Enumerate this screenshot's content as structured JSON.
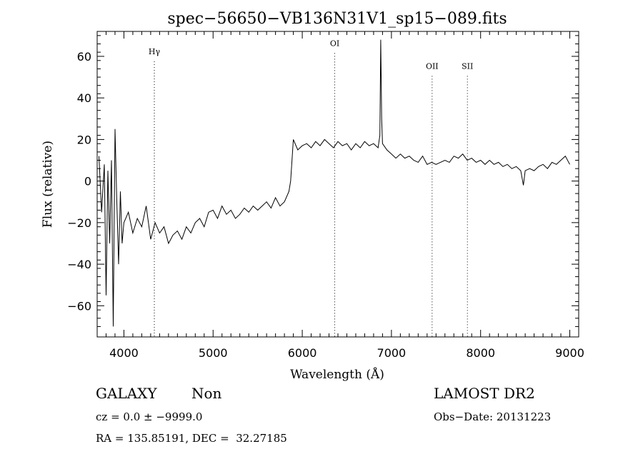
{
  "chart_data": {
    "type": "line",
    "title": "spec−56650−VB136N31V1_sp15−089.fits",
    "xlabel": "Wavelength (Å)",
    "ylabel": "Flux (relative)",
    "xlim": [
      3700,
      9100
    ],
    "ylim": [
      -75,
      72
    ],
    "xticks": [
      4000,
      5000,
      6000,
      7000,
      8000,
      9000
    ],
    "yticks": [
      -60,
      -40,
      -20,
      0,
      20,
      40,
      60
    ],
    "xtick_labels": [
      "4000",
      "5000",
      "6000",
      "7000",
      "8000",
      "9000"
    ],
    "ytick_labels": [
      "−60",
      "−40",
      "−20",
      "0",
      "20",
      "40",
      "60"
    ],
    "grid": false,
    "line_color": "#000000",
    "series": [
      {
        "x": [
          3720,
          3750,
          3780,
          3800,
          3820,
          3840,
          3860,
          3880,
          3900,
          3920,
          3940,
          3960,
          3980,
          4000,
          4050,
          4100,
          4150,
          4200,
          4250,
          4300,
          4350,
          4400,
          4450,
          4500,
          4550,
          4600,
          4650,
          4700,
          4750,
          4800,
          4850,
          4900,
          4950,
          5000,
          5050,
          5100,
          5150,
          5200,
          5250,
          5300,
          5350,
          5400,
          5450,
          5500,
          5550,
          5600,
          5650,
          5700,
          5750,
          5800,
          5850,
          5870,
          5900,
          5950,
          6000,
          6050,
          6100,
          6150,
          6200,
          6250,
          6300,
          6350,
          6400,
          6450,
          6500,
          6550,
          6600,
          6650,
          6700,
          6750,
          6800,
          6850,
          6870,
          6880,
          6890,
          6900,
          6950,
          7000,
          7050,
          7100,
          7150,
          7200,
          7250,
          7300,
          7350,
          7400,
          7450,
          7500,
          7550,
          7600,
          7650,
          7700,
          7750,
          7800,
          7850,
          7900,
          7950,
          8000,
          8050,
          8100,
          8150,
          8200,
          8250,
          8300,
          8350,
          8400,
          8450,
          8480,
          8500,
          8550,
          8600,
          8650,
          8700,
          8750,
          8800,
          8850,
          8900,
          8950,
          9000
        ],
        "y": [
          12,
          -15,
          8,
          -55,
          5,
          -30,
          10,
          -70,
          25,
          -10,
          -40,
          -5,
          -30,
          -20,
          -15,
          -25,
          -18,
          -22,
          -12,
          -28,
          -20,
          -25,
          -22,
          -30,
          -26,
          -24,
          -28,
          -22,
          -25,
          -20,
          -18,
          -22,
          -15,
          -14,
          -18,
          -12,
          -16,
          -14,
          -18,
          -16,
          -13,
          -15,
          -12,
          -14,
          -12,
          -10,
          -13,
          -8,
          -12,
          -10,
          -5,
          0,
          20,
          15,
          17,
          18,
          16,
          19,
          17,
          20,
          18,
          16,
          19,
          17,
          18,
          15,
          18,
          16,
          19,
          17,
          18,
          16,
          22,
          68,
          30,
          18,
          15,
          13,
          11,
          13,
          11,
          12,
          10,
          9,
          12,
          8,
          9,
          8,
          9,
          10,
          9,
          12,
          11,
          13,
          10,
          11,
          9,
          10,
          8,
          10,
          8,
          9,
          7,
          8,
          6,
          7,
          5,
          -2,
          5,
          6,
          5,
          7,
          8,
          6,
          9,
          8,
          10,
          12,
          8
        ]
      }
    ],
    "annotations": [
      {
        "label": "Hγ",
        "x": 4341,
        "y": 61
      },
      {
        "label": "OI",
        "x": 6364,
        "y": 65
      },
      {
        "label": "OII",
        "x": 7456,
        "y": 54
      },
      {
        "label": "SII",
        "x": 7852,
        "y": 54
      }
    ]
  },
  "footer": {
    "object_class": "GALAXY",
    "object_subclass": "Non",
    "survey": "LAMOST DR2",
    "cz": "cz = 0.0 ± −9999.0",
    "obs_date": "Obs−Date: 20131223",
    "radec": "RA = 135.85191, DEC =  32.27185"
  }
}
